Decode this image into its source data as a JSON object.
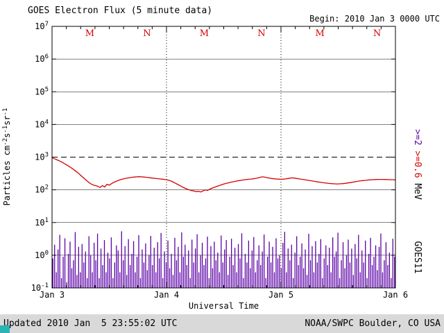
{
  "header": {
    "title": "GOES Electron Flux (5 minute data)",
    "begin_time": "Begin: 2010 Jan 3 0000 UTC"
  },
  "footer": {
    "updated": "Updated 2010 Jan  5 23:55:02 UTC",
    "source": "NOAA/SWPC Boulder, CO USA"
  },
  "colors": {
    "red": "#d40000",
    "purple": "#5b00a5",
    "axis": "#000000",
    "footer_bg": "#d9d9d9",
    "corner": "#2ab5b5"
  },
  "right_labels": {
    "ge2": ">=2 ",
    "ge06": ">=0.6 ",
    "mev": "MeV",
    "satellite": "GOES11"
  },
  "chart_data": {
    "type": "line+bar",
    "title": "GOES Electron Flux (5 minute data)",
    "xlabel": "Universal Time",
    "ylabel_parts": [
      {
        "text": "Particles cm"
      },
      {
        "sup": "-2"
      },
      {
        "text": "s"
      },
      {
        "sup": "-1"
      },
      {
        "text": "sr"
      },
      {
        "sup": "-1"
      }
    ],
    "x_days": 3,
    "x_tick_labels": [
      "Jan 3",
      "Jan 4",
      "Jan 5",
      "Jan 6"
    ],
    "y_exponents": [
      -1,
      0,
      1,
      2,
      3,
      4,
      5,
      6,
      7
    ],
    "gridline_exponents": [
      0,
      1,
      2,
      4,
      5,
      6
    ],
    "threshold": 1000,
    "day_boundaries": [
      1,
      2
    ],
    "local_time_markers": [
      {
        "t": 0.33,
        "label": "M"
      },
      {
        "t": 0.83,
        "label": "N"
      },
      {
        "t": 1.33,
        "label": "M"
      },
      {
        "t": 1.83,
        "label": "N"
      },
      {
        "t": 2.34,
        "label": "M"
      },
      {
        "t": 2.84,
        "label": "N"
      }
    ],
    "series": [
      {
        "name": ">=0.6 MeV",
        "type": "line",
        "color_key": "red",
        "x_start": 0,
        "x_step": 0.02,
        "values": [
          950,
          900,
          840,
          780,
          720,
          660,
          600,
          545,
          490,
          440,
          390,
          345,
          300,
          260,
          225,
          195,
          170,
          152,
          140,
          135,
          128,
          118,
          135,
          122,
          148,
          138,
          155,
          170,
          182,
          195,
          205,
          215,
          222,
          230,
          236,
          242,
          246,
          250,
          252,
          250,
          246,
          242,
          238,
          233,
          228,
          224,
          220,
          216,
          212,
          208,
          204,
          196,
          185,
          172,
          158,
          145,
          133,
          122,
          113,
          105,
          99,
          95,
          92,
          88,
          90,
          86,
          93,
          99,
          96,
          106,
          113,
          120,
          128,
          135,
          142,
          150,
          157,
          163,
          170,
          176,
          182,
          188,
          193,
          198,
          203,
          207,
          210,
          214,
          218,
          224,
          232,
          242,
          250,
          244,
          236,
          228,
          222,
          218,
          214,
          212,
          210,
          212,
          216,
          222,
          228,
          232,
          228,
          222,
          216,
          210,
          205,
          200,
          195,
          190,
          185,
          180,
          175,
          171,
          167,
          163,
          160,
          157,
          155,
          153,
          152,
          152,
          153,
          155,
          158,
          162,
          166,
          170,
          175,
          180,
          185,
          189,
          193,
          196,
          199,
          202,
          204,
          206,
          207,
          208,
          208,
          207,
          206,
          205,
          204,
          203,
          202
        ]
      },
      {
        "name": ">=2 MeV",
        "type": "bar",
        "color_key": "purple",
        "x_start": 0.0075,
        "x_step": 0.015,
        "values": [
          0.8,
          2.1,
          0.3,
          1.5,
          4.2,
          0.2,
          0.9,
          3.3,
          0.15,
          1.1,
          2.6,
          0.4,
          0.7,
          5.1,
          0.25,
          1.8,
          0.3,
          2.2,
          0.6,
          1.3,
          0.2,
          3.8,
          1.0,
          0.3,
          2.4,
          0.7,
          4.6,
          0.2,
          1.6,
          0.5,
          2.9,
          0.3,
          1.2,
          0.8,
          3.5,
          0.2,
          0.6,
          2.0,
          1.4,
          0.3,
          5.4,
          0.7,
          1.9,
          0.25,
          3.1,
          0.5,
          1.1,
          2.7,
          0.3,
          0.9,
          4.1,
          0.2,
          1.5,
          0.6,
          2.3,
          0.35,
          1.0,
          3.9,
          0.5,
          1.7,
          0.3,
          2.5,
          0.8,
          4.8,
          0.2,
          1.3,
          0.6,
          2.8,
          0.4,
          1.1,
          0.25,
          3.4,
          0.7,
          1.8,
          0.3,
          5.0,
          0.9,
          2.1,
          0.5,
          1.4,
          0.2,
          3.0,
          0.6,
          1.6,
          4.4,
          0.3,
          1.0,
          2.4,
          0.5,
          0.8,
          3.7,
          0.2,
          1.9,
          0.4,
          2.6,
          0.7,
          1.2,
          0.3,
          4.0,
          0.6,
          1.5,
          2.9,
          0.25,
          0.9,
          3.2,
          0.5,
          1.7,
          0.3,
          2.2,
          0.8,
          4.7,
          0.2,
          1.1,
          0.6,
          2.8,
          0.4,
          1.4,
          3.6,
          0.3,
          0.7,
          2.0,
          0.5,
          1.3,
          4.3,
          0.2,
          0.9,
          2.6,
          0.6,
          1.8,
          0.3,
          3.3,
          0.8,
          1.0,
          0.4,
          2.4,
          5.2,
          0.3,
          1.6,
          0.7,
          2.1,
          0.2,
          1.2,
          3.8,
          0.5,
          0.9,
          2.3,
          0.4,
          1.5,
          0.25,
          4.5,
          0.7,
          1.9,
          0.3,
          2.7,
          0.6,
          1.1,
          3.1,
          0.2,
          0.8,
          2.0,
          0.5,
          1.7,
          0.3,
          3.5,
          0.9,
          1.3,
          4.9,
          0.2,
          0.7,
          2.5,
          0.4,
          1.0,
          3.0,
          0.6,
          1.6,
          0.25,
          2.2,
          0.8,
          4.2,
          0.3,
          1.4,
          0.6,
          2.8,
          0.2,
          1.1,
          3.4,
          0.5,
          0.9,
          2.0,
          0.35,
          1.8,
          4.6,
          0.3,
          0.7,
          2.5,
          0.5,
          1.2,
          0.2,
          3.2,
          0.9
        ]
      }
    ]
  }
}
